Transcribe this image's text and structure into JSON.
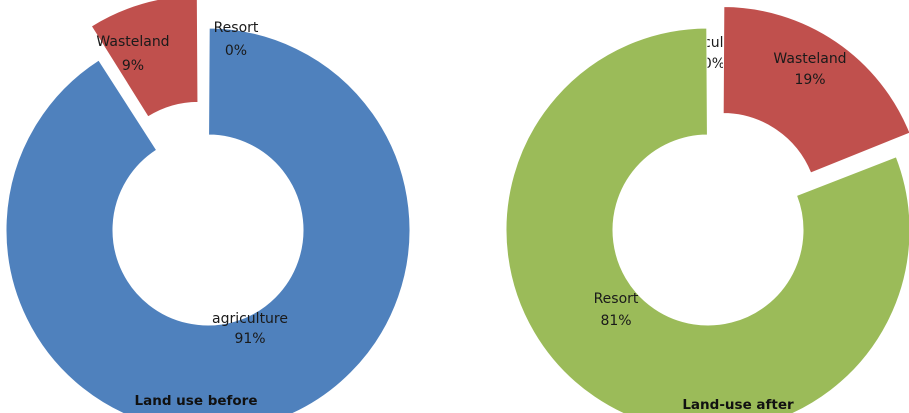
{
  "chart_data": [
    {
      "type": "pie",
      "variant": "donut",
      "title": "Land use before",
      "legend": "none",
      "slices": [
        {
          "label": "agriculture",
          "value": 91,
          "display": "91%",
          "color": "#4f81bd",
          "exploded": false
        },
        {
          "label": "Wasteland",
          "value": 9,
          "display": "9%",
          "color": "#c0504d",
          "exploded": true
        },
        {
          "label": "Resort",
          "value": 0,
          "display": "0%",
          "color": "#9bbb59",
          "exploded": false
        }
      ]
    },
    {
      "type": "pie",
      "variant": "donut",
      "title": "Land-use after",
      "legend": "none",
      "slices": [
        {
          "label": "agriculture",
          "value": 0,
          "display": "0%",
          "color": "#4f81bd",
          "exploded": false
        },
        {
          "label": "Wasteland",
          "value": 19,
          "display": "19%",
          "color": "#c0504d",
          "exploded": true
        },
        {
          "label": "Resort",
          "value": 81,
          "display": "81%",
          "color": "#9bbb59",
          "exploded": false
        }
      ]
    }
  ]
}
